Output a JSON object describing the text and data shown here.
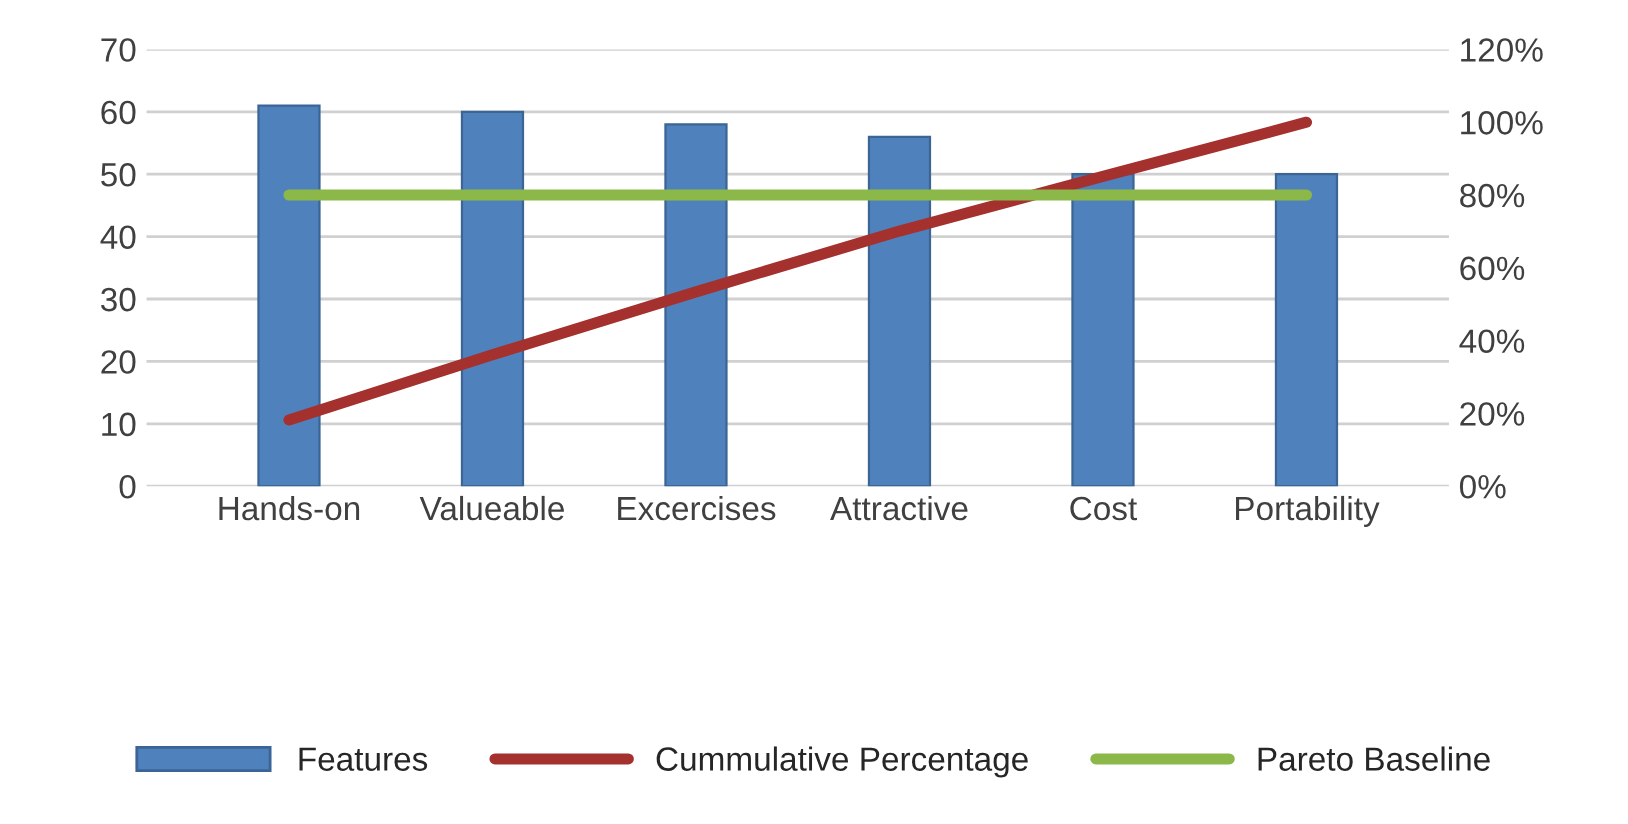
{
  "chart_data": {
    "type": "bar",
    "categories": [
      "Hands-on",
      "Valueable",
      "Excercises",
      "Attractive",
      "Cost",
      "Portability"
    ],
    "series": [
      {
        "name": "Features",
        "color": "#4f81bd",
        "values": [
          61,
          60,
          58,
          56,
          50,
          50
        ]
      },
      {
        "name": "Cummulative Percentage",
        "type": "line",
        "axis": "y2",
        "color": "#a5312f",
        "values": [
          18.2,
          36.1,
          53.4,
          70.1,
          85.1,
          100
        ]
      },
      {
        "name": "Pareto Baseline",
        "type": "line",
        "axis": "y2",
        "color": "#8cb84a",
        "values": [
          80,
          80,
          80,
          80,
          80,
          80
        ]
      }
    ],
    "ylim": [
      0,
      70
    ],
    "yticks": [
      0,
      10,
      20,
      30,
      40,
      50,
      60,
      70
    ],
    "y2lim": [
      0,
      120
    ],
    "y2ticks": [
      {
        "value": 0,
        "label": "0%"
      },
      {
        "value": 20,
        "label": "20%"
      },
      {
        "value": 40,
        "label": "40%"
      },
      {
        "value": 60,
        "label": "60%"
      },
      {
        "value": 80,
        "label": "80%"
      },
      {
        "value": 100,
        "label": "100%"
      },
      {
        "value": 120,
        "label": "120%"
      }
    ],
    "grid": "y",
    "legend": "bottom",
    "marker": "none",
    "line_style": "solid"
  }
}
